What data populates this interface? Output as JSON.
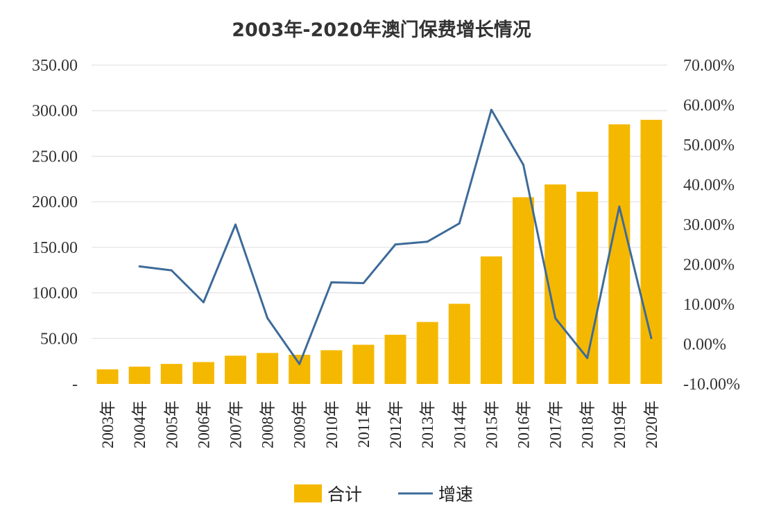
{
  "chart_data": {
    "type": "bar",
    "title": "2003年-2020年澳门保费增长情况",
    "categories": [
      "2003年",
      "2004年",
      "2005年",
      "2006年",
      "2007年",
      "2008年",
      "2009年",
      "2010年",
      "2011年",
      "2012年",
      "2013年",
      "2014年",
      "2015年",
      "2016年",
      "2017年",
      "2018年",
      "2019年",
      "2020年"
    ],
    "series": [
      {
        "name": "合计",
        "type": "bar",
        "axis": "left",
        "color": "#f5b800",
        "values": [
          16,
          19,
          22,
          24,
          31,
          34,
          32,
          37,
          43,
          54,
          68,
          88,
          140,
          205,
          219,
          211,
          285,
          290
        ]
      },
      {
        "name": "增速",
        "type": "line",
        "axis": "right",
        "color": "#3d6b99",
        "values": [
          null,
          19.5,
          18.5,
          10.5,
          30.0,
          6.5,
          -5.0,
          15.5,
          15.3,
          25.0,
          25.7,
          30.3,
          58.8,
          45.0,
          6.5,
          -3.5,
          34.5,
          1.5
        ]
      }
    ],
    "y_left": {
      "ylim": [
        0,
        350
      ],
      "ticks": [
        0,
        50,
        100,
        150,
        200,
        250,
        300,
        350
      ],
      "tick_labels": [
        "-",
        "50.00",
        "100.00",
        "150.00",
        "200.00",
        "250.00",
        "300.00",
        "350.00"
      ]
    },
    "y_right": {
      "ylim": [
        -10,
        70
      ],
      "ticks": [
        -10,
        0,
        10,
        20,
        30,
        40,
        50,
        60,
        70
      ],
      "tick_labels": [
        "-10.00%",
        "0.00%",
        "10.00%",
        "20.00%",
        "30.00%",
        "40.00%",
        "50.00%",
        "60.00%",
        "70.00%"
      ]
    },
    "grid": true,
    "legend_position": "bottom"
  }
}
